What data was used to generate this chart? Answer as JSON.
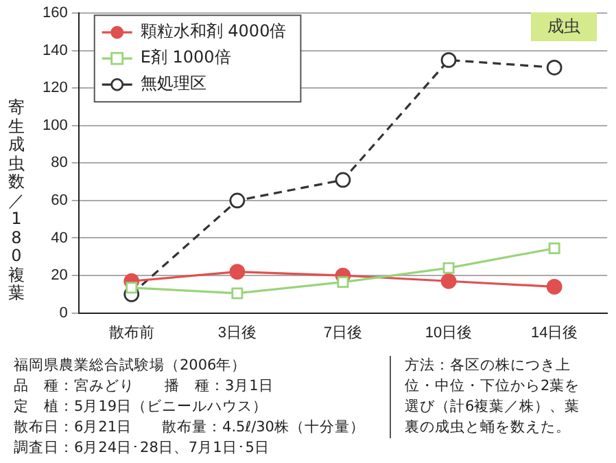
{
  "chart_data": {
    "type": "line",
    "ylabel": "寄生成虫数／180複葉",
    "categories": [
      "散布前",
      "3日後",
      "7日後",
      "10日後",
      "14日後"
    ],
    "series": [
      {
        "name": "顆粒水和剤 4000倍",
        "color": "#e05050",
        "values": [
          17,
          22,
          20,
          17,
          14
        ],
        "marker": "circle",
        "line_style": "solid"
      },
      {
        "name": "E剤 1000倍",
        "color": "#99d47a",
        "values": [
          13.5,
          10.5,
          16.5,
          24,
          34.5
        ],
        "marker": "square",
        "line_style": "solid"
      },
      {
        "name": "無処理区",
        "color": "#333333",
        "values": [
          10,
          60,
          71,
          135,
          131
        ],
        "marker": "circle",
        "line_style": "dashed"
      }
    ],
    "ylim": [
      0,
      160
    ],
    "yticks": [
      0,
      20,
      40,
      60,
      80,
      100,
      120,
      140,
      160
    ],
    "grid": "y",
    "legend": "top left",
    "annotations": [
      "成虫",
      "福岡県農業総合試験場（2006年）",
      "品　種：宮みどり　　播　種：3月1日",
      "定　植：5月19日（ビニールハウス）",
      "散布日：6月21日　　散布量：4.5ℓ/30株（十分量）",
      "調査日：6月24日･28日、7月1日･5日",
      "方法：各区の株につき上位・中位・下位から2葉を選び（計6複葉／株）、葉裏の成虫と蛹を数えた。"
    ]
  }
}
